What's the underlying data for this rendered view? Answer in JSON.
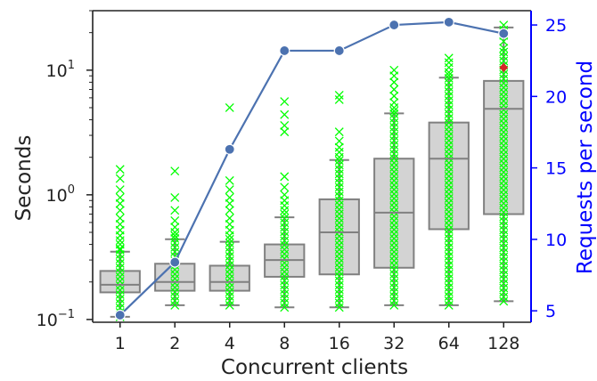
{
  "chart_data": {
    "type": "box",
    "title": "",
    "xlabel": "Concurrent clients",
    "ylabel_left": "Seconds",
    "ylabel_right": "Requests per second",
    "left_axis": {
      "scale": "log",
      "ylim": [
        0.095,
        30
      ],
      "ticks": [
        {
          "value": 0.1,
          "base": "10",
          "exp": "−1"
        },
        {
          "value": 1,
          "base": "10",
          "exp": "0"
        },
        {
          "value": 10,
          "base": "10",
          "exp": "1"
        }
      ]
    },
    "right_axis": {
      "scale": "linear",
      "ylim": [
        4.2,
        26
      ],
      "ticks": [
        "5",
        "10",
        "15",
        "20",
        "25"
      ]
    },
    "categories": [
      "1",
      "2",
      "4",
      "8",
      "16",
      "32",
      "64",
      "128"
    ],
    "boxes": [
      {
        "whislo": 0.105,
        "q1": 0.165,
        "med": 0.19,
        "q3": 0.245,
        "whishi": 0.35,
        "outliers": [
          1.6,
          1.35,
          1.1,
          0.95,
          0.85,
          0.75,
          0.65,
          0.58,
          0.52,
          0.47,
          0.43,
          0.4,
          0.37
        ]
      },
      {
        "whislo": 0.13,
        "q1": 0.17,
        "med": 0.2,
        "q3": 0.28,
        "whishi": 0.44,
        "outliers": [
          1.55,
          0.95,
          0.75,
          0.62,
          0.55,
          0.5,
          0.47
        ]
      },
      {
        "whislo": 0.13,
        "q1": 0.17,
        "med": 0.2,
        "q3": 0.27,
        "whishi": 0.42,
        "outliers": [
          5.0,
          1.3,
          1.1,
          0.95,
          0.85,
          0.75,
          0.65,
          0.58,
          0.52,
          0.47,
          0.44
        ]
      },
      {
        "whislo": 0.125,
        "q1": 0.22,
        "med": 0.3,
        "q3": 0.4,
        "whishi": 0.66,
        "outliers": [
          5.6,
          4.4,
          3.6,
          3.2,
          1.4,
          1.15,
          1.0,
          0.9,
          0.82,
          0.75,
          0.7
        ]
      },
      {
        "whislo": 0.125,
        "q1": 0.23,
        "med": 0.5,
        "q3": 0.92,
        "whishi": 1.9,
        "outliers": [
          6.3,
          5.8,
          3.2,
          2.7,
          2.4,
          2.2,
          2.0
        ]
      },
      {
        "whislo": 0.13,
        "q1": 0.26,
        "med": 0.72,
        "q3": 1.95,
        "whishi": 4.5,
        "outliers": [
          10.0,
          9.0,
          8.0,
          7.0,
          6.2,
          5.5,
          5.0,
          4.7
        ]
      },
      {
        "whislo": 0.13,
        "q1": 0.53,
        "med": 1.95,
        "q3": 3.8,
        "whishi": 8.7,
        "outliers": [
          12.5,
          11.5,
          10.5,
          9.6,
          9.1
        ]
      },
      {
        "whislo": 0.14,
        "q1": 0.7,
        "med": 4.9,
        "q3": 8.2,
        "whishi": 22.0,
        "outliers": [
          23.0,
          21.0,
          19.0,
          17.0,
          15.0
        ]
      }
    ],
    "mean_markers": [
      {
        "category": "128",
        "value": 10.5
      }
    ],
    "series": [
      {
        "axis": "right",
        "values": [
          4.7,
          8.4,
          16.3,
          23.2,
          23.2,
          25.0,
          25.2,
          24.4
        ]
      }
    ],
    "colors": {
      "box_fill": "#d3d3d3",
      "box_edge": "#808080",
      "outlier": "#00ff00",
      "mean_marker": "#d62728",
      "line": "#4c72b0",
      "right_axis": "#0000ff"
    },
    "grid": false
  }
}
